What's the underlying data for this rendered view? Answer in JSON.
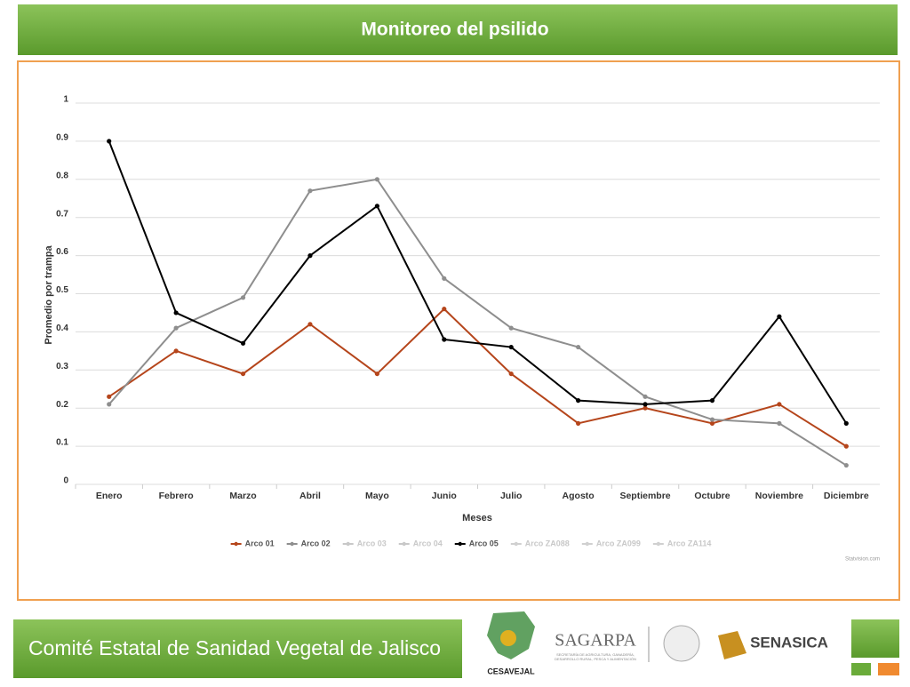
{
  "header": {
    "title": "Monitoreo del psilido"
  },
  "chart_data": {
    "type": "line",
    "ylabel": "Promedio por trampa",
    "xlabel": "Meses",
    "categories": [
      "Enero",
      "Febrero",
      "Marzo",
      "Abril",
      "Mayo",
      "Junio",
      "Julio",
      "Agosto",
      "Septiembre",
      "Octubre",
      "Noviembre",
      "Diciembre"
    ],
    "series": [
      {
        "name": "Arco 01",
        "color": "#b5451b",
        "values": [
          0.23,
          0.35,
          0.29,
          0.42,
          0.29,
          0.46,
          0.29,
          0.16,
          0.2,
          0.16,
          0.21,
          0.1
        ]
      },
      {
        "name": "Arco 02",
        "color": "#8e8e8e",
        "values": [
          0.21,
          0.41,
          0.49,
          0.77,
          0.8,
          0.54,
          0.41,
          0.36,
          0.23,
          0.17,
          0.16,
          0.05
        ]
      },
      {
        "name": "Arco 03",
        "color": "#c8c8c8",
        "values": [
          null,
          null,
          null,
          null,
          null,
          null,
          null,
          null,
          null,
          null,
          null,
          null
        ]
      },
      {
        "name": "Arco 04",
        "color": "#c8c8c8",
        "values": [
          null,
          null,
          null,
          null,
          null,
          null,
          null,
          null,
          null,
          null,
          null,
          null
        ]
      },
      {
        "name": "Arco 05",
        "color": "#000000",
        "values": [
          0.9,
          0.45,
          0.37,
          0.6,
          0.73,
          0.38,
          0.36,
          0.22,
          0.21,
          0.22,
          0.44,
          0.16
        ]
      },
      {
        "name": "Arco ZA088",
        "color": "#d0d0d0",
        "values": [
          null,
          null,
          null,
          null,
          null,
          null,
          null,
          null,
          null,
          null,
          null,
          null
        ]
      },
      {
        "name": "Arco ZA099",
        "color": "#d0d0d0",
        "values": [
          null,
          null,
          null,
          null,
          null,
          null,
          null,
          null,
          null,
          null,
          null,
          null
        ]
      },
      {
        "name": "Arco ZA114",
        "color": "#d0d0d0",
        "values": [
          null,
          null,
          null,
          null,
          null,
          null,
          null,
          null,
          null,
          null,
          null,
          null
        ]
      }
    ],
    "ylim": [
      0,
      1
    ],
    "yticks": [
      0,
      0.1,
      0.2,
      0.3,
      0.4,
      0.5,
      0.6,
      0.7,
      0.8,
      0.9,
      1
    ],
    "grid": true,
    "legend": "bottom",
    "credit": "Statvision.com"
  },
  "footer": {
    "title": "Comité Estatal de Sanidad Vegetal de Jalisco",
    "logos": [
      "CESAVEJAL",
      "SAGARPA",
      "SENASICA"
    ],
    "sagarpa_subtitle": "SECRETARÍA DE AGRICULTURA, GANADERÍA, DESARROLLO RURAL, PESCA Y ALIMENTACIÓN"
  }
}
